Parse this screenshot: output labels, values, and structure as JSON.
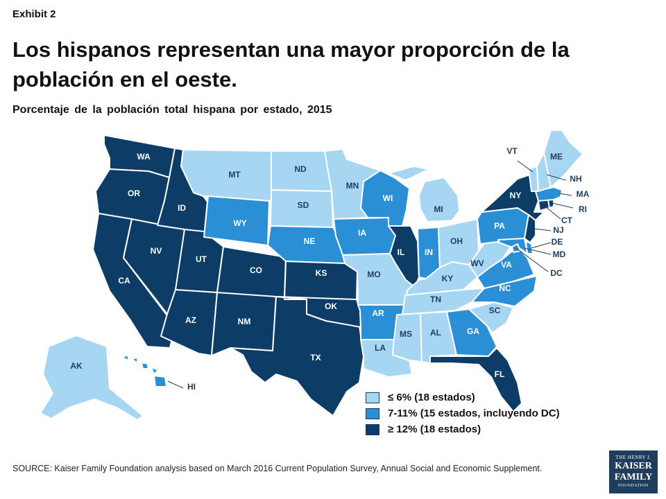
{
  "exhibit": "Exhibit 2",
  "title": "Los hispanos representan una mayor proporción de la población en el oeste.",
  "subtitle": "Porcentaje de la población total hispana por estado, 2015",
  "colors": {
    "low": "#a6d6f2",
    "mid": "#2b8fd6",
    "high": "#0d3d66",
    "label_light": "#1f3d5c",
    "label_dark": "#ffffff"
  },
  "legend": [
    {
      "key": "low",
      "label": "≤ 6% (18 estados)"
    },
    {
      "key": "mid",
      "label": "7-11% (15 estados, incluyendo DC)"
    },
    {
      "key": "high",
      "label": "≥ 12% (18 estados)"
    }
  ],
  "states": {
    "WA": "high",
    "OR": "high",
    "CA": "high",
    "NV": "high",
    "ID": "high",
    "UT": "high",
    "AZ": "high",
    "CO": "high",
    "NM": "high",
    "TX": "high",
    "KS": "high",
    "OK": "high",
    "IL": "high",
    "FL": "high",
    "NY": "high",
    "NJ": "high",
    "CT": "high",
    "RI": "high",
    "MT": "low",
    "WY": "mid",
    "ND": "low",
    "SD": "low",
    "NE": "mid",
    "MN": "low",
    "IA": "mid",
    "WI": "mid",
    "MO": "low",
    "AR": "mid",
    "LA": "low",
    "MS": "low",
    "AL": "low",
    "TN": "low",
    "KY": "low",
    "IN": "mid",
    "OH": "low",
    "MI": "low",
    "WV": "low",
    "VA": "mid",
    "NC": "mid",
    "SC": "low",
    "GA": "mid",
    "PA": "mid",
    "MD": "mid",
    "DE": "mid",
    "DC": "mid",
    "MA": "mid",
    "VT": "low",
    "NH": "low",
    "ME": "low",
    "AK": "low",
    "HI": "mid"
  },
  "source": "SOURCE: Kaiser Family Foundation analysis based on March 2016 Current Population Survey, Annual Social and Economic Supplement.",
  "logo": {
    "line1": "THE HENRY J.",
    "line2": "KAISER",
    "line3": "FAMILY",
    "line4": "FOUNDATION"
  }
}
